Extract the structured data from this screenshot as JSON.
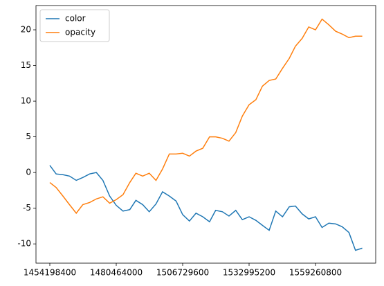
{
  "chart_data": {
    "type": "line",
    "x": [
      1454198400,
      1456704000,
      1459382400,
      1461974400,
      1464652800,
      1467244800,
      1469923200,
      1472601600,
      1475193600,
      1477872000,
      1480464000,
      1483142400,
      1485820800,
      1488240000,
      1490918400,
      1493510400,
      1496188800,
      1498780800,
      1501459200,
      1504137600,
      1506729600,
      1509408000,
      1512000000,
      1514678400,
      1517356800,
      1519776000,
      1522454400,
      1525046400,
      1527724800,
      1530316800,
      1532995200,
      1535673600,
      1538265600,
      1540944000,
      1543536000,
      1546214400,
      1548892800,
      1551312000,
      1553990400,
      1556582400,
      1559260800,
      1561852800,
      1564531200,
      1567209600,
      1569801600,
      1572480000,
      1575072000,
      1577750400
    ],
    "series": [
      {
        "name": "color",
        "color": "#1f77b4",
        "values": [
          1.0,
          -0.2,
          -0.3,
          -0.5,
          -1.1,
          -0.7,
          -0.2,
          0.0,
          -1.1,
          -3.3,
          -4.6,
          -5.4,
          -5.2,
          -3.9,
          -4.5,
          -5.5,
          -4.4,
          -2.7,
          -3.3,
          -4.0,
          -5.9,
          -6.8,
          -5.7,
          -6.2,
          -6.9,
          -5.3,
          -5.5,
          -6.1,
          -5.3,
          -6.6,
          -6.2,
          -6.7,
          -7.4,
          -8.1,
          -5.4,
          -6.2,
          -4.8,
          -4.7,
          -5.8,
          -6.5,
          -6.2,
          -7.7,
          -7.1,
          -7.2,
          -7.6,
          -8.4,
          -10.9,
          -10.6
        ]
      },
      {
        "name": "opacity",
        "color": "#ff7f0e",
        "values": [
          -1.4,
          -2.1,
          -3.3,
          -4.5,
          -5.7,
          -4.5,
          -4.2,
          -3.7,
          -3.4,
          -4.3,
          -3.8,
          -3.1,
          -1.4,
          -0.1,
          -0.5,
          -0.1,
          -1.1,
          0.5,
          2.6,
          2.6,
          2.7,
          2.3,
          3.0,
          3.4,
          5.0,
          5.0,
          4.8,
          4.4,
          5.6,
          7.9,
          9.5,
          10.2,
          12.1,
          12.9,
          13.1,
          14.6,
          16.0,
          17.7,
          18.8,
          20.4,
          20.0,
          21.5,
          20.7,
          19.8,
          19.4,
          18.9,
          19.1,
          19.1
        ]
      }
    ],
    "xlim": [
      1448726400,
      1583064000
    ],
    "xticks": [
      1454198400,
      1480464000,
      1506729600,
      1532995200,
      1559260800
    ],
    "ylim": [
      -12.7,
      23.4
    ],
    "yticks": [
      -10,
      -5,
      0,
      5,
      10,
      15,
      20
    ],
    "legend": "upper left"
  }
}
